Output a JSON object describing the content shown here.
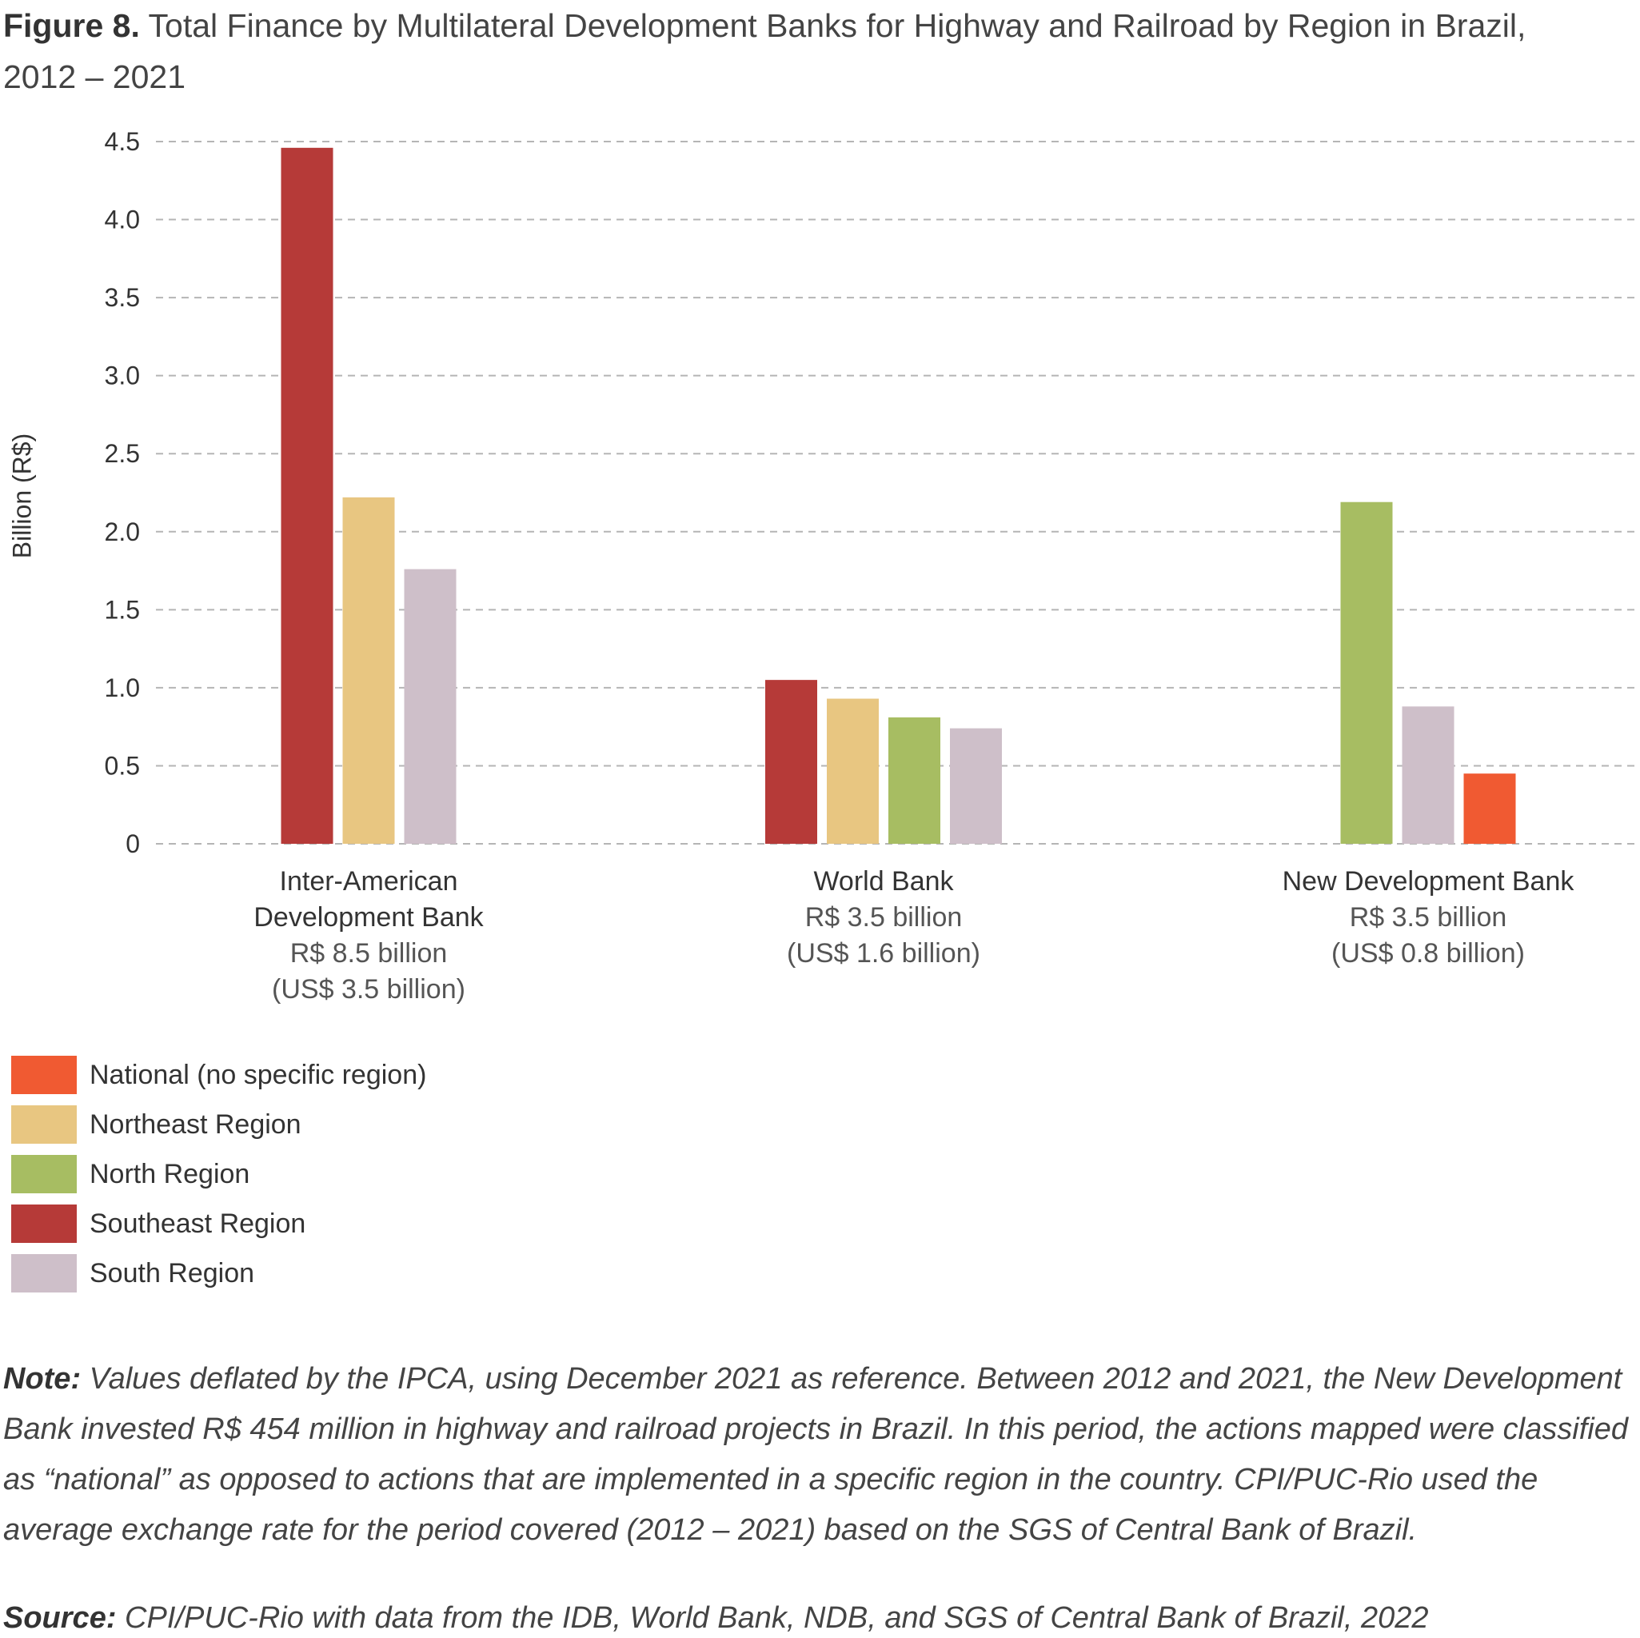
{
  "title": {
    "figure_label": "Figure 8.",
    "text": "Total Finance by Multilateral Development Banks for Highway and Railroad by Region in Brazil, 2012 – 2021"
  },
  "chart_data": {
    "type": "bar",
    "ylabel": "Billion (R$)",
    "xlabel": "",
    "ylim": [
      0,
      4.5
    ],
    "yticks": [
      "0",
      "0.5",
      "1.0",
      "1.5",
      "2.0",
      "2.5",
      "3.0",
      "3.5",
      "4.0",
      "4.5"
    ],
    "grid": "dashed horizontal",
    "legend_position": "bottom-left",
    "categories": [
      {
        "name_lines": [
          "Inter-American",
          "Development Bank"
        ],
        "sub_lines": [
          "R$ 8.5 billion",
          "(US$ 3.5 billion)"
        ]
      },
      {
        "name_lines": [
          "World Bank"
        ],
        "sub_lines": [
          "R$ 3.5 billion",
          "(US$ 1.6 billion)"
        ]
      },
      {
        "name_lines": [
          "New Development Bank"
        ],
        "sub_lines": [
          "R$ 3.5 billion",
          "(US$ 0.8 billion)"
        ]
      }
    ],
    "series": [
      {
        "name": "National (no specific region)",
        "color": "#f05a32",
        "values": [
          null,
          null,
          0.45
        ]
      },
      {
        "name": "Northeast Region",
        "color": "#e8c681",
        "values": [
          2.22,
          0.93,
          null
        ]
      },
      {
        "name": "North Region",
        "color": "#a7bd62",
        "values": [
          null,
          0.81,
          2.19
        ]
      },
      {
        "name": "Southeast Region",
        "color": "#b63a38",
        "values": [
          4.46,
          1.05,
          null
        ]
      },
      {
        "name": "South Region",
        "color": "#cebfc9",
        "values": [
          1.76,
          0.74,
          0.88
        ]
      }
    ],
    "bar_order": [
      [
        "Southeast Region",
        "Northeast Region",
        "South Region"
      ],
      [
        "Southeast Region",
        "Northeast Region",
        "North Region",
        "South Region"
      ],
      [
        "North Region",
        "South Region",
        "National (no specific region)"
      ]
    ]
  },
  "note": {
    "label": "Note:",
    "text": "Values deflated by the IPCA, using December 2021 as reference. Between 2012 and 2021, the New Development Bank invested R$ 454 million in highway and railroad projects in Brazil. In this period, the actions mapped were classified as “national” as opposed to actions that are implemented in a specific region in the country. CPI/PUC-Rio used the average exchange rate for the period covered (2012 – 2021) based on the SGS of Central Bank of Brazil."
  },
  "source": {
    "label": "Source:",
    "text": "CPI/PUC-Rio with data from the IDB, World Bank, NDB, and SGS of Central Bank of Brazil, 2022"
  }
}
